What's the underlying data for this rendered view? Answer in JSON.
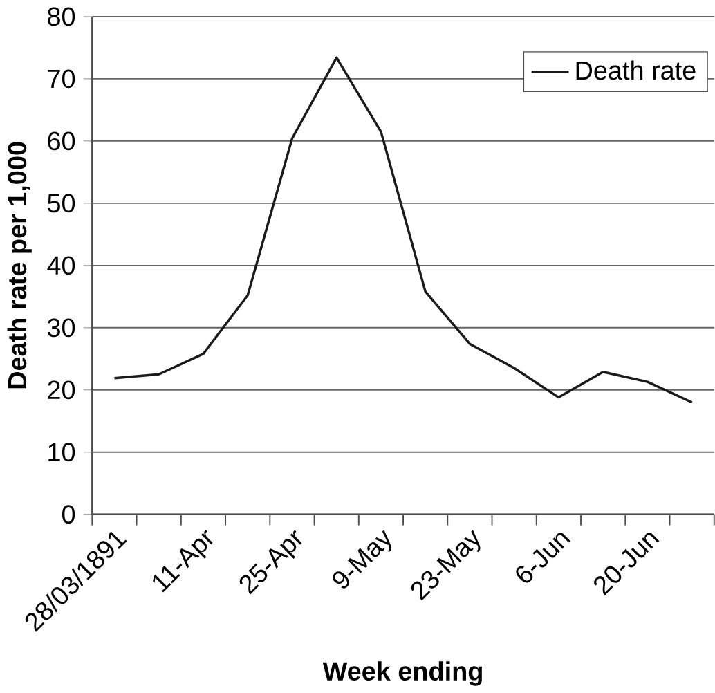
{
  "chart_data": {
    "type": "line",
    "xlabel": "Week ending",
    "ylabel": "Death rate per 1,000",
    "categories": [
      "28/03/1891",
      null,
      "11-Apr",
      null,
      "25-Apr",
      null,
      "9-May",
      null,
      "23-May",
      null,
      "6-Jun",
      null,
      "20-Jun",
      null
    ],
    "series": [
      {
        "name": "Death rate",
        "color": "#1a1a1a",
        "values": [
          21.9,
          22.5,
          25.8,
          35.2,
          60.4,
          73.4,
          61.5,
          35.8,
          27.4,
          23.5,
          18.8,
          22.9,
          21.3,
          18.0
        ]
      }
    ],
    "ylim": [
      0,
      80
    ],
    "yticks": [
      0,
      10,
      20,
      30,
      40,
      50,
      60,
      70,
      80
    ],
    "grid": "y",
    "legend": "top right",
    "marker": "none",
    "line_style": "solid"
  }
}
